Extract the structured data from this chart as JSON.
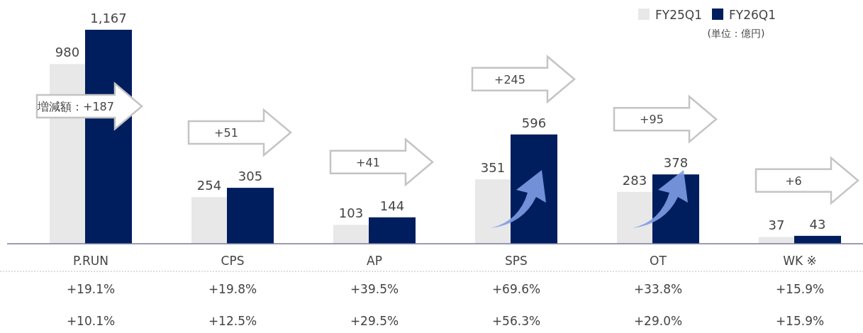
{
  "chart_data": {
    "type": "bar",
    "categories": [
      "P.RUN",
      "CPS",
      "AP",
      "SPS",
      "OT",
      "WK ※"
    ],
    "series": [
      {
        "name": "FY25Q1",
        "color": "#e8e8e8",
        "values": [
          980,
          254,
          103,
          351,
          283,
          37
        ],
        "value_labels": [
          "980",
          "254",
          "103",
          "351",
          "283",
          "37"
        ]
      },
      {
        "name": "FY26Q1",
        "color": "#001e5e",
        "values": [
          1167,
          305,
          144,
          596,
          378,
          43
        ],
        "value_labels": [
          "1,167",
          "305",
          "144",
          "596",
          "378",
          "43"
        ]
      }
    ],
    "legend": "top right",
    "annotations": [
      "増減額：+187",
      "+51",
      "+41",
      "+245",
      "+95",
      "+6",
      "+19.1%",
      "+19.8%",
      "+39.5%",
      "+69.6%",
      "+33.8%",
      "+15.9%",
      "+10.1%",
      "+12.5%",
      "+29.5%",
      "+56.3%",
      "+29.0%",
      "+15.9%",
      "(単位：億円)"
    ]
  }
}
